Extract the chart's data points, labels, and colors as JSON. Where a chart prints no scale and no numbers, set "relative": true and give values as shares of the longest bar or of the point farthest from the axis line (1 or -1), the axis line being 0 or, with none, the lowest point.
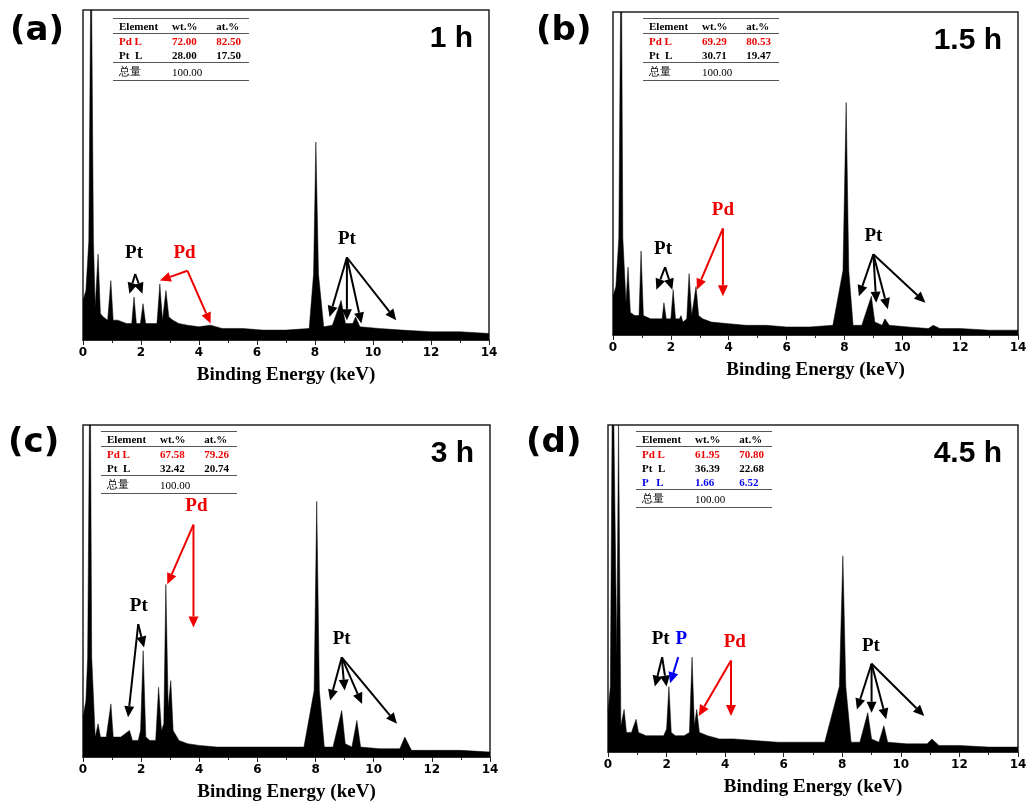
{
  "chart_data": [
    {
      "type": "area",
      "title": "(a)",
      "subtitle": "1 h",
      "xlabel": "Binding Energy (keV)",
      "relative": true,
      "xlim": [
        0,
        14
      ],
      "xticks": [
        0,
        2,
        4,
        6,
        8,
        10,
        12,
        14
      ],
      "grid": false,
      "tick_labels": "x",
      "annotations": [
        "Element\twt.%\tat.%",
        "Pd L\t72.00\t82.50",
        "Pt  L\t28.00\t17.50",
        "总量\t100.00\t",
        "Pt",
        "Pd",
        "Pt"
      ],
      "series": [
        {
          "color": "#000000",
          "x": [
            0,
            0.1,
            0.2,
            0.26,
            0.3,
            0.36,
            0.42,
            0.52,
            0.6,
            0.7,
            0.85,
            0.96,
            1.04,
            1.2,
            1.5,
            1.68,
            1.76,
            1.84,
            1.98,
            2.07,
            2.16,
            2.35,
            2.55,
            2.65,
            2.74,
            2.86,
            2.96,
            3.1,
            3.3,
            3.6,
            4.0,
            4.4,
            4.8,
            5.5,
            6.2,
            7.0,
            7.8,
            7.95,
            8.03,
            8.12,
            8.3,
            8.6,
            8.9,
            9.05,
            9.3,
            9.4,
            9.55,
            10.2,
            11,
            12,
            13,
            14
          ],
          "values": [
            0.12,
            0.15,
            0.3,
            1,
            1,
            0.3,
            0.1,
            0.26,
            0.08,
            0.07,
            0.06,
            0.18,
            0.06,
            0.06,
            0.05,
            0.05,
            0.13,
            0.05,
            0.05,
            0.11,
            0.05,
            0.05,
            0.05,
            0.17,
            0.06,
            0.15,
            0.07,
            0.06,
            0.05,
            0.045,
            0.04,
            0.045,
            0.035,
            0.035,
            0.03,
            0.03,
            0.035,
            0.2,
            0.6,
            0.2,
            0.04,
            0.045,
            0.12,
            0.05,
            0.05,
            0.07,
            0.04,
            0.035,
            0.03,
            0.025,
            0.025,
            0.02
          ]
        }
      ]
    },
    {
      "type": "area",
      "title": "(b)",
      "subtitle": "1.5 h",
      "xlabel": "Binding Energy (keV)",
      "relative": true,
      "xlim": [
        0,
        14
      ],
      "xticks": [
        0,
        2,
        4,
        6,
        8,
        10,
        12,
        14
      ],
      "grid": false,
      "tick_labels": "x",
      "annotations": [
        "Element\twt.%\tat.%",
        "Pd L\t69.29\t80.53",
        "Pt  L\t30.71\t19.47",
        "总量\t100.00\t",
        "Pt",
        "Pd",
        "Pt"
      ],
      "series": [
        {
          "color": "#000000",
          "x": [
            0,
            0.1,
            0.2,
            0.26,
            0.3,
            0.34,
            0.45,
            0.52,
            0.6,
            0.75,
            0.9,
            0.97,
            1.05,
            1.3,
            1.6,
            1.7,
            1.76,
            1.84,
            2.0,
            2.08,
            2.16,
            2.3,
            2.35,
            2.42,
            2.55,
            2.63,
            2.72,
            2.87,
            2.96,
            3.1,
            3.4,
            4.0,
            4.6,
            5.3,
            6.0,
            6.8,
            7.6,
            7.95,
            8.06,
            8.15,
            8.3,
            8.6,
            8.93,
            9.05,
            9.3,
            9.4,
            9.55,
            10.2,
            10.9,
            11.07,
            11.3,
            12,
            13,
            14
          ],
          "values": [
            0.12,
            0.15,
            0.3,
            1,
            1,
            0.3,
            0.1,
            0.21,
            0.07,
            0.06,
            0.06,
            0.26,
            0.06,
            0.05,
            0.05,
            0.05,
            0.1,
            0.05,
            0.05,
            0.14,
            0.05,
            0.05,
            0.06,
            0.04,
            0.05,
            0.19,
            0.06,
            0.15,
            0.06,
            0.05,
            0.04,
            0.035,
            0.03,
            0.03,
            0.025,
            0.025,
            0.03,
            0.2,
            0.72,
            0.2,
            0.03,
            0.03,
            0.12,
            0.04,
            0.03,
            0.05,
            0.03,
            0.025,
            0.02,
            0.03,
            0.02,
            0.02,
            0.015,
            0.015
          ]
        }
      ]
    },
    {
      "type": "area",
      "title": "(c)",
      "subtitle": "3 h",
      "xlabel": "Binding Energy (keV)",
      "relative": true,
      "xlim": [
        0,
        14
      ],
      "xticks": [
        0,
        2,
        4,
        6,
        8,
        10,
        12,
        14
      ],
      "grid": false,
      "tick_labels": "x",
      "annotations": [
        "Element\twt.%\tat.%",
        "Pd L\t67.58\t79.26",
        "Pt  L\t32.42\t20.74",
        "总量\t100.00\t",
        "Pt",
        "Pd",
        "Pt"
      ],
      "series": [
        {
          "color": "#000000",
          "x": [
            0,
            0.1,
            0.16,
            0.22,
            0.26,
            0.3,
            0.42,
            0.52,
            0.6,
            0.8,
            0.96,
            1.04,
            1.3,
            1.6,
            1.7,
            1.9,
            1.98,
            2.07,
            2.16,
            2.3,
            2.5,
            2.6,
            2.7,
            2.78,
            2.85,
            2.93,
            3.02,
            3.1,
            3.3,
            3.6,
            4.0,
            4.6,
            5.3,
            6.0,
            6.8,
            7.6,
            7.95,
            8.04,
            8.13,
            8.3,
            8.6,
            8.9,
            9.02,
            9.25,
            9.42,
            9.55,
            10.2,
            10.9,
            11.07,
            11.3,
            12,
            13,
            14
          ],
          "values": [
            0.12,
            0.17,
            0.3,
            1,
            1,
            0.3,
            0.06,
            0.1,
            0.06,
            0.06,
            0.16,
            0.06,
            0.06,
            0.08,
            0.05,
            0.05,
            0.08,
            0.32,
            0.06,
            0.05,
            0.05,
            0.21,
            0.08,
            0.1,
            0.52,
            0.15,
            0.23,
            0.08,
            0.05,
            0.04,
            0.035,
            0.03,
            0.03,
            0.03,
            0.03,
            0.03,
            0.2,
            0.77,
            0.2,
            0.03,
            0.03,
            0.14,
            0.04,
            0.03,
            0.11,
            0.03,
            0.025,
            0.025,
            0.06,
            0.02,
            0.02,
            0.02,
            0.015
          ]
        }
      ]
    },
    {
      "type": "area",
      "title": "(d)",
      "subtitle": "4.5 h",
      "xlabel": "Binding Energy (keV)",
      "relative": true,
      "xlim": [
        0,
        14
      ],
      "xticks": [
        0,
        2,
        4,
        6,
        8,
        10,
        12,
        14
      ],
      "grid": false,
      "tick_labels": "x",
      "annotations": [
        "Element\twt.%\tat.%",
        "Pd L\t61.95\t70.80",
        "Pt  L\t36.39\t22.68",
        "P   L\t1.66\t6.52",
        "总量\t100.00\t",
        "Pt",
        "P",
        "Pd",
        "Pt"
      ],
      "series": [
        {
          "color": "#000000",
          "x": [
            0,
            0.08,
            0.14,
            0.2,
            0.3,
            0.36,
            0.44,
            0.55,
            0.63,
            0.8,
            0.96,
            1.04,
            1.3,
            1.6,
            1.9,
            2.0,
            2.08,
            2.16,
            2.3,
            2.6,
            2.78,
            2.87,
            2.95,
            3.03,
            3.12,
            3.4,
            3.8,
            4.3,
            5.0,
            5.8,
            6.6,
            7.4,
            7.9,
            8.02,
            8.12,
            8.3,
            8.6,
            8.87,
            9.0,
            9.25,
            9.42,
            9.55,
            10.2,
            10.9,
            11.06,
            11.3,
            12,
            13,
            14
          ],
          "values": [
            0.12,
            0.2,
            1,
            1,
            0.3,
            1,
            0.08,
            0.13,
            0.06,
            0.06,
            0.1,
            0.06,
            0.05,
            0.05,
            0.05,
            0.07,
            0.2,
            0.06,
            0.05,
            0.05,
            0.06,
            0.29,
            0.08,
            0.13,
            0.06,
            0.05,
            0.04,
            0.04,
            0.035,
            0.03,
            0.03,
            0.03,
            0.2,
            0.6,
            0.2,
            0.03,
            0.03,
            0.12,
            0.04,
            0.03,
            0.08,
            0.03,
            0.025,
            0.025,
            0.04,
            0.02,
            0.02,
            0.015,
            0.015
          ]
        }
      ]
    }
  ]
}
